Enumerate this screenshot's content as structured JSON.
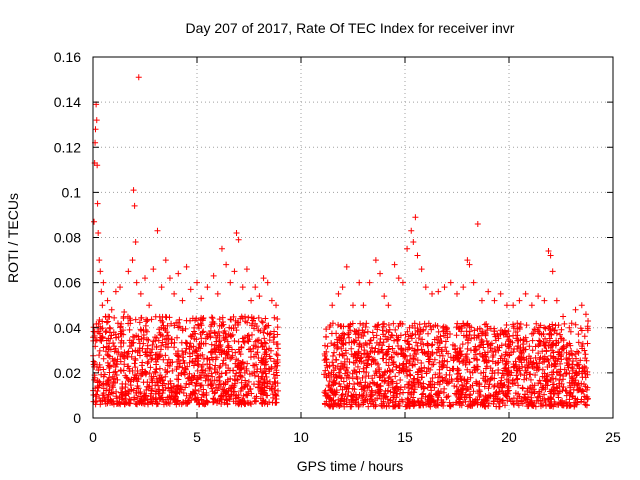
{
  "chart_data": {
    "type": "scatter",
    "title": "Day 207 of 2017, Rate Of TEC Index for receiver invr",
    "xlabel": "GPS time / hours",
    "ylabel": "ROTI / TECUs",
    "xlim": [
      0,
      25
    ],
    "ylim": [
      0,
      0.16
    ],
    "xticks": [
      0,
      5,
      10,
      15,
      20,
      25
    ],
    "yticks": [
      0,
      0.02,
      0.04,
      0.06,
      0.08,
      0.1,
      0.12,
      0.14,
      0.16
    ],
    "xtick_labels": [
      "0",
      "5",
      "10",
      "15",
      "20",
      "25"
    ],
    "ytick_labels": [
      "0",
      "0.02",
      "0.04",
      "0.06",
      "0.08",
      "0.1",
      "0.12",
      "0.14",
      "0.16"
    ],
    "grid": true,
    "marker": "+",
    "color": "#ff0000",
    "data_gap_hours": [
      8.9,
      11.1
    ],
    "series": [
      {
        "name": "ROTI",
        "points": [
          [
            0.05,
            0.087
          ],
          [
            0.08,
            0.113
          ],
          [
            0.1,
            0.122
          ],
          [
            0.12,
            0.128
          ],
          [
            0.15,
            0.139
          ],
          [
            0.18,
            0.132
          ],
          [
            0.2,
            0.112
          ],
          [
            0.22,
            0.095
          ],
          [
            0.25,
            0.082
          ],
          [
            0.3,
            0.07
          ],
          [
            0.35,
            0.065
          ],
          [
            0.4,
            0.056
          ],
          [
            0.45,
            0.05
          ],
          [
            0.5,
            0.06
          ],
          [
            0.6,
            0.045
          ],
          [
            0.7,
            0.052
          ],
          [
            0.8,
            0.04
          ],
          [
            0.9,
            0.048
          ],
          [
            1.0,
            0.038
          ],
          [
            1.1,
            0.056
          ],
          [
            1.2,
            0.042
          ],
          [
            1.3,
            0.058
          ],
          [
            1.5,
            0.047
          ],
          [
            1.7,
            0.065
          ],
          [
            1.9,
            0.07
          ],
          [
            1.95,
            0.101
          ],
          [
            2.0,
            0.094
          ],
          [
            2.05,
            0.078
          ],
          [
            2.1,
            0.06
          ],
          [
            2.2,
            0.151
          ],
          [
            2.3,
            0.055
          ],
          [
            2.5,
            0.062
          ],
          [
            2.7,
            0.05
          ],
          [
            2.9,
            0.066
          ],
          [
            3.1,
            0.083
          ],
          [
            3.3,
            0.058
          ],
          [
            3.5,
            0.07
          ],
          [
            3.7,
            0.062
          ],
          [
            3.9,
            0.055
          ],
          [
            4.1,
            0.064
          ],
          [
            4.3,
            0.052
          ],
          [
            4.5,
            0.067
          ],
          [
            4.7,
            0.057
          ],
          [
            5.0,
            0.06
          ],
          [
            5.2,
            0.053
          ],
          [
            5.5,
            0.058
          ],
          [
            5.8,
            0.063
          ],
          [
            6.0,
            0.055
          ],
          [
            6.2,
            0.075
          ],
          [
            6.4,
            0.068
          ],
          [
            6.6,
            0.06
          ],
          [
            6.8,
            0.065
          ],
          [
            6.9,
            0.082
          ],
          [
            7.0,
            0.079
          ],
          [
            7.2,
            0.058
          ],
          [
            7.4,
            0.066
          ],
          [
            7.6,
            0.052
          ],
          [
            7.8,
            0.058
          ],
          [
            8.0,
            0.054
          ],
          [
            8.2,
            0.062
          ],
          [
            8.4,
            0.06
          ],
          [
            8.6,
            0.052
          ],
          [
            8.8,
            0.05
          ],
          [
            11.2,
            0.036
          ],
          [
            11.5,
            0.05
          ],
          [
            11.8,
            0.055
          ],
          [
            12.0,
            0.058
          ],
          [
            12.2,
            0.067
          ],
          [
            12.5,
            0.05
          ],
          [
            12.8,
            0.06
          ],
          [
            13.0,
            0.05
          ],
          [
            13.3,
            0.06
          ],
          [
            13.6,
            0.07
          ],
          [
            13.8,
            0.064
          ],
          [
            14.0,
            0.054
          ],
          [
            14.2,
            0.05
          ],
          [
            14.5,
            0.068
          ],
          [
            14.7,
            0.062
          ],
          [
            14.9,
            0.06
          ],
          [
            15.1,
            0.075
          ],
          [
            15.3,
            0.083
          ],
          [
            15.4,
            0.078
          ],
          [
            15.5,
            0.089
          ],
          [
            15.6,
            0.072
          ],
          [
            15.8,
            0.066
          ],
          [
            16.0,
            0.058
          ],
          [
            16.3,
            0.055
          ],
          [
            16.6,
            0.056
          ],
          [
            16.9,
            0.058
          ],
          [
            17.2,
            0.06
          ],
          [
            17.5,
            0.055
          ],
          [
            17.8,
            0.058
          ],
          [
            18.0,
            0.07
          ],
          [
            18.1,
            0.068
          ],
          [
            18.3,
            0.06
          ],
          [
            18.5,
            0.086
          ],
          [
            18.7,
            0.052
          ],
          [
            19.0,
            0.056
          ],
          [
            19.3,
            0.052
          ],
          [
            19.6,
            0.055
          ],
          [
            19.9,
            0.05
          ],
          [
            20.2,
            0.05
          ],
          [
            20.5,
            0.052
          ],
          [
            20.8,
            0.055
          ],
          [
            21.1,
            0.05
          ],
          [
            21.4,
            0.054
          ],
          [
            21.7,
            0.052
          ],
          [
            21.9,
            0.074
          ],
          [
            22.0,
            0.072
          ],
          [
            22.1,
            0.065
          ],
          [
            22.3,
            0.052
          ],
          [
            22.6,
            0.045
          ],
          [
            22.9,
            0.04
          ],
          [
            23.2,
            0.048
          ],
          [
            23.5,
            0.05
          ],
          [
            23.7,
            0.046
          ],
          [
            23.8,
            0.043
          ]
        ],
        "dense_bands": [
          {
            "x_start": 0.0,
            "x_end": 8.9,
            "y_low": 0.006,
            "y_high": 0.045
          },
          {
            "x_start": 11.1,
            "x_end": 23.8,
            "y_low": 0.005,
            "y_high": 0.042
          }
        ]
      }
    ]
  }
}
